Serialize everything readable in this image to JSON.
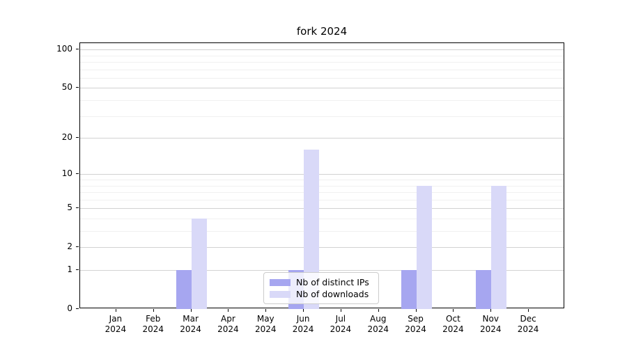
{
  "chart_data": {
    "type": "bar",
    "title": "fork 2024",
    "categories": [
      "Jan",
      "Feb",
      "Mar",
      "Apr",
      "May",
      "Jun",
      "Jul",
      "Aug",
      "Sep",
      "Oct",
      "Nov",
      "Dec"
    ],
    "year_label": "2024",
    "series": [
      {
        "name": "Nb of distinct IPs",
        "color": "#a6a6f0",
        "values": [
          0,
          0,
          1,
          0,
          0,
          1,
          0,
          0,
          1,
          0,
          1,
          0
        ]
      },
      {
        "name": "Nb of downloads",
        "color": "#d9d9f8",
        "values": [
          0,
          0,
          4,
          0,
          0,
          16,
          0,
          0,
          8,
          0,
          8,
          0
        ]
      }
    ],
    "yscale": "log1p",
    "ylim": [
      0,
      112
    ],
    "yticks": [
      0,
      1,
      2,
      5,
      10,
      20,
      50,
      100
    ],
    "yticks_minor": [
      3,
      4,
      6,
      7,
      8,
      9,
      30,
      40,
      60,
      70,
      80,
      90
    ],
    "grid": true,
    "legend_position": "lower center"
  }
}
